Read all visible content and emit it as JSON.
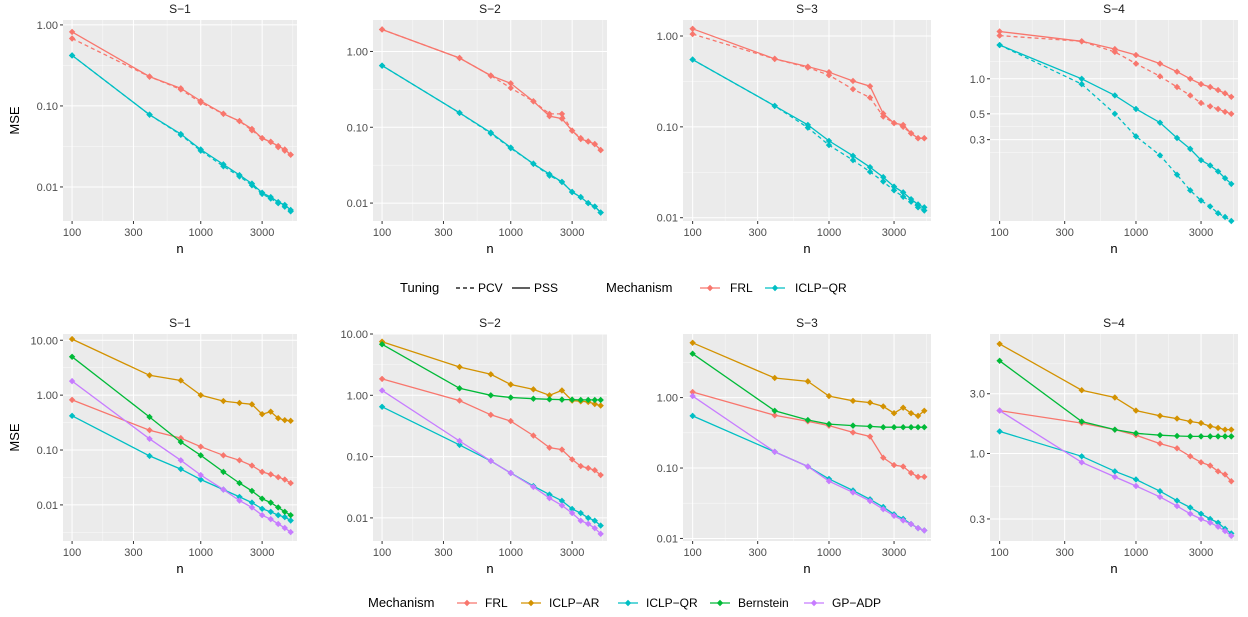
{
  "colors": {
    "FRL": "#F8766D",
    "ICLP-AR": "#D39200",
    "ICLP-QR": "#00BFC4",
    "Bernstein": "#00BA38",
    "GP-ADP": "#C77CFF",
    "panel_bg": "#EBEBEB",
    "grid_major": "#FFFFFF",
    "text": "#4D4D4D"
  },
  "legend_top": {
    "tuning_title": "Tuning",
    "tuning_items": [
      "PCV",
      "PSS"
    ],
    "mechanism_title": "Mechanism",
    "mechanism_items": [
      "FRL",
      "ICLP−QR"
    ]
  },
  "legend_bottom": {
    "mechanism_title": "Mechanism",
    "mechanism_items": [
      "FRL",
      "ICLP−AR",
      "ICLP−QR",
      "Bernstein",
      "GP−ADP"
    ]
  },
  "chart_data": [
    {
      "type": "line",
      "row": 1,
      "title": "S−1",
      "xlabel": "n",
      "ylabel": "MSE",
      "xscale": "log",
      "yscale": "log",
      "xlim": [
        85,
        5600
      ],
      "ylim": [
        0.0038,
        1.15
      ],
      "xticks": [
        100,
        300,
        1000,
        3000
      ],
      "xticklabels": [
        "100",
        "300",
        "1000",
        "3000"
      ],
      "yticks": [
        0.01,
        0.1,
        1
      ],
      "yticklabels": [
        "0.01",
        "0.10",
        "1.00"
      ],
      "x": [
        100,
        400,
        700,
        1000,
        1500,
        2000,
        2500,
        3000,
        3500,
        4000,
        4500,
        5000
      ],
      "series": [
        {
          "mechanism": "FRL",
          "tuning": "PSS",
          "values": [
            0.82,
            0.23,
            0.165,
            0.115,
            0.08,
            0.065,
            0.052,
            0.04,
            0.036,
            0.032,
            0.029,
            0.025
          ]
        },
        {
          "mechanism": "FRL",
          "tuning": "PCV",
          "values": [
            0.68,
            0.23,
            0.16,
            0.11,
            0.08,
            0.065,
            0.05,
            0.04,
            0.036,
            0.031,
            0.028,
            0.025
          ]
        },
        {
          "mechanism": "ICLP-QR",
          "tuning": "PSS",
          "values": [
            0.42,
            0.078,
            0.045,
            0.029,
            0.019,
            0.014,
            0.011,
            0.0085,
            0.0075,
            0.0065,
            0.006,
            0.0052
          ]
        },
        {
          "mechanism": "ICLP-QR",
          "tuning": "PCV",
          "values": [
            0.42,
            0.078,
            0.044,
            0.028,
            0.018,
            0.0135,
            0.0105,
            0.0082,
            0.0072,
            0.0063,
            0.0057,
            0.005
          ]
        }
      ]
    },
    {
      "type": "line",
      "row": 1,
      "title": "S−2",
      "xlabel": "n",
      "ylabel": "",
      "xscale": "log",
      "yscale": "log",
      "xlim": [
        85,
        5600
      ],
      "ylim": [
        0.0058,
        2.6
      ],
      "xticks": [
        100,
        300,
        1000,
        3000
      ],
      "xticklabels": [
        "100",
        "300",
        "1000",
        "3000"
      ],
      "yticks": [
        0.01,
        0.1,
        1
      ],
      "yticklabels": [
        "0.01",
        "0.10",
        "1.00"
      ],
      "x": [
        100,
        400,
        700,
        1000,
        1500,
        2000,
        2500,
        3000,
        3500,
        4000,
        4500,
        5000
      ],
      "series": [
        {
          "mechanism": "FRL",
          "tuning": "PSS",
          "values": [
            1.95,
            0.82,
            0.48,
            0.38,
            0.22,
            0.14,
            0.13,
            0.09,
            0.07,
            0.065,
            0.06,
            0.05
          ]
        },
        {
          "mechanism": "FRL",
          "tuning": "PCV",
          "values": [
            1.95,
            0.82,
            0.48,
            0.33,
            0.22,
            0.15,
            0.15,
            0.09,
            0.072,
            0.065,
            0.06,
            0.05
          ]
        },
        {
          "mechanism": "ICLP-QR",
          "tuning": "PSS",
          "values": [
            0.65,
            0.155,
            0.085,
            0.054,
            0.033,
            0.024,
            0.019,
            0.014,
            0.012,
            0.01,
            0.009,
            0.0075
          ]
        },
        {
          "mechanism": "ICLP-QR",
          "tuning": "PCV",
          "values": [
            0.65,
            0.155,
            0.083,
            0.053,
            0.033,
            0.023,
            0.019,
            0.014,
            0.012,
            0.01,
            0.009,
            0.0075
          ]
        }
      ]
    },
    {
      "type": "line",
      "row": 1,
      "title": "S−3",
      "xlabel": "n",
      "ylabel": "",
      "xscale": "log",
      "yscale": "log",
      "xlim": [
        85,
        5600
      ],
      "ylim": [
        0.0092,
        1.5
      ],
      "xticks": [
        100,
        300,
        1000,
        3000
      ],
      "xticklabels": [
        "100",
        "300",
        "1000",
        "3000"
      ],
      "yticks": [
        0.01,
        0.1,
        1
      ],
      "yticklabels": [
        "0.01",
        "0.10",
        "1.00"
      ],
      "x": [
        100,
        400,
        700,
        1000,
        1500,
        2000,
        2500,
        3000,
        3500,
        4000,
        4500,
        5000
      ],
      "series": [
        {
          "mechanism": "FRL",
          "tuning": "PSS",
          "values": [
            1.2,
            0.56,
            0.46,
            0.4,
            0.32,
            0.28,
            0.14,
            0.11,
            0.105,
            0.085,
            0.075,
            0.075
          ]
        },
        {
          "mechanism": "FRL",
          "tuning": "PCV",
          "values": [
            1.05,
            0.56,
            0.45,
            0.37,
            0.26,
            0.21,
            0.13,
            0.11,
            0.1,
            0.085,
            0.075,
            0.075
          ]
        },
        {
          "mechanism": "ICLP-QR",
          "tuning": "PSS",
          "values": [
            0.55,
            0.17,
            0.105,
            0.07,
            0.048,
            0.036,
            0.028,
            0.022,
            0.019,
            0.016,
            0.014,
            0.013
          ]
        },
        {
          "mechanism": "ICLP-QR",
          "tuning": "PCV",
          "values": [
            0.55,
            0.17,
            0.098,
            0.063,
            0.043,
            0.032,
            0.025,
            0.02,
            0.017,
            0.015,
            0.013,
            0.012
          ]
        }
      ]
    },
    {
      "type": "line",
      "row": 1,
      "title": "S−4",
      "xlabel": "n",
      "ylabel": "",
      "xscale": "log",
      "yscale": "log",
      "xlim": [
        85,
        5600
      ],
      "ylim": [
        0.06,
        3.2
      ],
      "xticks": [
        100,
        300,
        1000,
        3000
      ],
      "xticklabels": [
        "100",
        "300",
        "1000",
        "3000"
      ],
      "yticks": [
        0.3,
        0.5,
        1
      ],
      "yticklabels": [
        "0.3",
        "0.5",
        "1.0"
      ],
      "x": [
        100,
        400,
        700,
        1000,
        1500,
        2000,
        2500,
        3000,
        3500,
        4000,
        4500,
        5000
      ],
      "series": [
        {
          "mechanism": "FRL",
          "tuning": "PSS",
          "values": [
            2.55,
            2.1,
            1.8,
            1.6,
            1.35,
            1.15,
            1.0,
            0.9,
            0.85,
            0.8,
            0.75,
            0.7
          ]
        },
        {
          "mechanism": "FRL",
          "tuning": "PCV",
          "values": [
            2.35,
            2.1,
            1.7,
            1.35,
            1.05,
            0.85,
            0.72,
            0.62,
            0.58,
            0.55,
            0.52,
            0.5
          ]
        },
        {
          "mechanism": "ICLP-QR",
          "tuning": "PSS",
          "values": [
            1.95,
            1.0,
            0.72,
            0.55,
            0.42,
            0.31,
            0.25,
            0.2,
            0.18,
            0.16,
            0.14,
            0.125
          ]
        },
        {
          "mechanism": "ICLP-QR",
          "tuning": "PCV",
          "values": [
            1.95,
            0.9,
            0.5,
            0.32,
            0.22,
            0.15,
            0.11,
            0.09,
            0.08,
            0.07,
            0.065,
            0.06
          ]
        }
      ]
    },
    {
      "type": "line",
      "row": 2,
      "title": "S−1",
      "xlabel": "n",
      "ylabel": "MSE",
      "xscale": "log",
      "yscale": "log",
      "xlim": [
        85,
        5600
      ],
      "ylim": [
        0.0022,
        13
      ],
      "xticks": [
        100,
        300,
        1000,
        3000
      ],
      "xticklabels": [
        "100",
        "300",
        "1000",
        "3000"
      ],
      "yticks": [
        0.01,
        0.1,
        1,
        10
      ],
      "yticklabels": [
        "0.01",
        "0.10",
        "1.00",
        "10.00"
      ],
      "x": [
        100,
        400,
        700,
        1000,
        1500,
        2000,
        2500,
        3000,
        3500,
        4000,
        4500,
        5000
      ],
      "series": [
        {
          "mechanism": "FRL",
          "values": [
            0.82,
            0.23,
            0.165,
            0.115,
            0.08,
            0.065,
            0.052,
            0.04,
            0.036,
            0.032,
            0.029,
            0.025
          ]
        },
        {
          "mechanism": "ICLP-AR",
          "values": [
            10.5,
            2.3,
            1.85,
            1.0,
            0.78,
            0.72,
            0.68,
            0.45,
            0.5,
            0.38,
            0.35,
            0.34
          ]
        },
        {
          "mechanism": "ICLP-QR",
          "values": [
            0.42,
            0.078,
            0.045,
            0.029,
            0.019,
            0.014,
            0.011,
            0.0085,
            0.0075,
            0.0065,
            0.006,
            0.0052
          ]
        },
        {
          "mechanism": "Bernstein",
          "values": [
            5.0,
            0.4,
            0.14,
            0.08,
            0.04,
            0.025,
            0.018,
            0.013,
            0.011,
            0.009,
            0.0075,
            0.0065
          ]
        },
        {
          "mechanism": "GP-ADP",
          "values": [
            1.8,
            0.16,
            0.065,
            0.035,
            0.019,
            0.012,
            0.009,
            0.0065,
            0.0055,
            0.0045,
            0.0038,
            0.0032
          ]
        }
      ]
    },
    {
      "type": "line",
      "row": 2,
      "title": "S−2",
      "xlabel": "n",
      "ylabel": "",
      "xscale": "log",
      "yscale": "log",
      "xlim": [
        85,
        5600
      ],
      "ylim": [
        0.0042,
        10
      ],
      "xticks": [
        100,
        300,
        1000,
        3000
      ],
      "xticklabels": [
        "100",
        "300",
        "1000",
        "3000"
      ],
      "yticks": [
        0.01,
        0.1,
        1,
        10
      ],
      "yticklabels": [
        "0.01",
        "0.10",
        "1.00",
        "10.00"
      ],
      "x": [
        100,
        400,
        700,
        1000,
        1500,
        2000,
        2500,
        3000,
        3500,
        4000,
        4500,
        5000
      ],
      "series": [
        {
          "mechanism": "FRL",
          "values": [
            1.85,
            0.82,
            0.48,
            0.38,
            0.22,
            0.14,
            0.13,
            0.09,
            0.07,
            0.065,
            0.06,
            0.05
          ]
        },
        {
          "mechanism": "ICLP-AR",
          "values": [
            7.5,
            2.9,
            2.2,
            1.5,
            1.25,
            1.0,
            1.2,
            0.82,
            0.8,
            0.78,
            0.72,
            0.68
          ]
        },
        {
          "mechanism": "ICLP-QR",
          "values": [
            0.65,
            0.155,
            0.085,
            0.054,
            0.033,
            0.024,
            0.019,
            0.014,
            0.012,
            0.01,
            0.009,
            0.0075
          ]
        },
        {
          "mechanism": "Bernstein",
          "values": [
            6.8,
            1.3,
            1.0,
            0.92,
            0.88,
            0.86,
            0.85,
            0.85,
            0.84,
            0.84,
            0.84,
            0.84
          ]
        },
        {
          "mechanism": "GP-ADP",
          "values": [
            1.2,
            0.18,
            0.085,
            0.054,
            0.032,
            0.021,
            0.016,
            0.012,
            0.009,
            0.008,
            0.0068,
            0.0055
          ]
        }
      ]
    },
    {
      "type": "line",
      "row": 2,
      "title": "S−3",
      "xlabel": "n",
      "ylabel": "",
      "xscale": "log",
      "yscale": "log",
      "xlim": [
        85,
        5600
      ],
      "ylim": [
        0.0092,
        8
      ],
      "xticks": [
        100,
        300,
        1000,
        3000
      ],
      "xticklabels": [
        "100",
        "300",
        "1000",
        "3000"
      ],
      "yticks": [
        0.01,
        0.1,
        1
      ],
      "yticklabels": [
        "0.01",
        "0.10",
        "1.00"
      ],
      "x": [
        100,
        400,
        700,
        1000,
        1500,
        2000,
        2500,
        3000,
        3500,
        4000,
        4500,
        5000
      ],
      "series": [
        {
          "mechanism": "FRL",
          "values": [
            1.2,
            0.56,
            0.46,
            0.4,
            0.32,
            0.28,
            0.14,
            0.11,
            0.105,
            0.085,
            0.075,
            0.075
          ]
        },
        {
          "mechanism": "ICLP-AR",
          "values": [
            6.0,
            1.9,
            1.7,
            1.05,
            0.9,
            0.85,
            0.75,
            0.6,
            0.72,
            0.6,
            0.55,
            0.65
          ]
        },
        {
          "mechanism": "ICLP-QR",
          "values": [
            0.55,
            0.17,
            0.105,
            0.07,
            0.048,
            0.036,
            0.028,
            0.022,
            0.019,
            0.016,
            0.014,
            0.013
          ]
        },
        {
          "mechanism": "Bernstein",
          "values": [
            4.2,
            0.65,
            0.48,
            0.42,
            0.4,
            0.39,
            0.38,
            0.38,
            0.38,
            0.38,
            0.38,
            0.38
          ]
        },
        {
          "mechanism": "GP-ADP",
          "values": [
            1.05,
            0.17,
            0.105,
            0.065,
            0.045,
            0.034,
            0.026,
            0.021,
            0.018,
            0.016,
            0.014,
            0.013
          ]
        }
      ]
    },
    {
      "type": "line",
      "row": 2,
      "title": "S−4",
      "xlabel": "n",
      "ylabel": "",
      "xscale": "log",
      "yscale": "log",
      "xlim": [
        85,
        5600
      ],
      "ylim": [
        0.2,
        9
      ],
      "xticks": [
        100,
        300,
        1000,
        3000
      ],
      "xticklabels": [
        "100",
        "300",
        "1000",
        "3000"
      ],
      "yticks": [
        0.3,
        1,
        3
      ],
      "yticklabels": [
        "0.3",
        "1.0",
        "3.0"
      ],
      "x": [
        100,
        400,
        700,
        1000,
        1500,
        2000,
        2500,
        3000,
        3500,
        4000,
        4500,
        5000
      ],
      "series": [
        {
          "mechanism": "FRL",
          "values": [
            2.2,
            1.75,
            1.55,
            1.4,
            1.2,
            1.1,
            0.95,
            0.85,
            0.8,
            0.72,
            0.68,
            0.6
          ]
        },
        {
          "mechanism": "ICLP-AR",
          "values": [
            7.5,
            3.2,
            2.8,
            2.2,
            2.0,
            1.9,
            1.8,
            1.75,
            1.65,
            1.6,
            1.55,
            1.55
          ]
        },
        {
          "mechanism": "ICLP-QR",
          "values": [
            1.5,
            0.95,
            0.72,
            0.62,
            0.5,
            0.42,
            0.37,
            0.33,
            0.3,
            0.28,
            0.25,
            0.23
          ]
        },
        {
          "mechanism": "Bernstein",
          "values": [
            5.5,
            1.8,
            1.55,
            1.45,
            1.4,
            1.38,
            1.37,
            1.37,
            1.37,
            1.37,
            1.37,
            1.37
          ]
        },
        {
          "mechanism": "GP-ADP",
          "values": [
            2.2,
            0.85,
            0.65,
            0.55,
            0.45,
            0.38,
            0.33,
            0.3,
            0.28,
            0.26,
            0.24,
            0.22
          ]
        }
      ]
    }
  ]
}
